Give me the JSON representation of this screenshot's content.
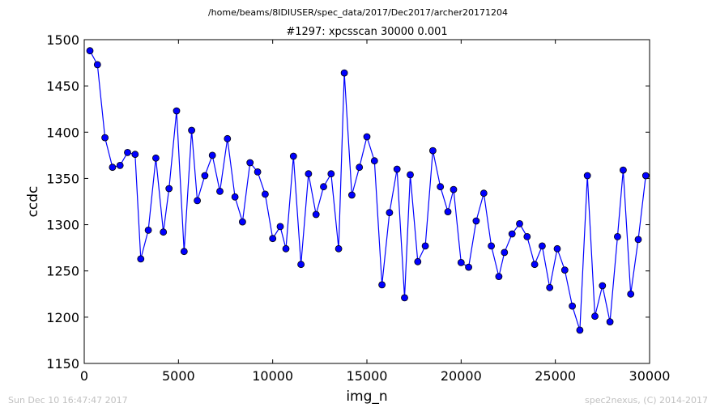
{
  "chart_data": {
    "type": "line",
    "suptitle": "/home/beams/8IDIUSER/spec_data/2017/Dec2017/archer20171204",
    "title": "#1297: xpcsscan 30000 0.001",
    "xlabel": "img_n",
    "ylabel": "ccdc",
    "xlim": [
      0,
      30000
    ],
    "ylim": [
      1150,
      1500
    ],
    "xticks": [
      0,
      5000,
      10000,
      15000,
      20000,
      25000,
      30000
    ],
    "yticks": [
      1150,
      1200,
      1250,
      1300,
      1350,
      1400,
      1450,
      1500
    ],
    "xtick_labels": [
      "0",
      "5000",
      "10000",
      "15000",
      "20000",
      "25000",
      "30000"
    ],
    "ytick_labels": [
      "1150",
      "1200",
      "1250",
      "1300",
      "1350",
      "1400",
      "1450",
      "1500"
    ],
    "grid": false,
    "legend": "none",
    "series": [
      {
        "color": "#0000ff",
        "marker": "circle",
        "x": [
          300,
          700,
          1100,
          1500,
          1900,
          2300,
          2700,
          3000,
          3400,
          3800,
          4200,
          4500,
          4900,
          5300,
          5700,
          6000,
          6400,
          6800,
          7200,
          7600,
          8000,
          8400,
          8800,
          9200,
          9600,
          10000,
          10400,
          10700,
          11100,
          11500,
          11900,
          12300,
          12700,
          13100,
          13500,
          13800,
          14200,
          14600,
          15000,
          15400,
          15800,
          16200,
          16600,
          17000,
          17300,
          17700,
          18100,
          18500,
          18900,
          19300,
          19600,
          20000,
          20400,
          20800,
          21200,
          21600,
          22000,
          22300,
          22700,
          23100,
          23500,
          23900,
          24300,
          24700,
          25100,
          25500,
          25900,
          26300,
          26700,
          27100,
          27500,
          27900,
          28300,
          28600,
          29000,
          29400,
          29800
        ],
        "y": [
          1488,
          1473,
          1394,
          1362,
          1364,
          1378,
          1376,
          1263,
          1294,
          1372,
          1292,
          1339,
          1423,
          1271,
          1402,
          1326,
          1353,
          1375,
          1336,
          1393,
          1330,
          1303,
          1367,
          1357,
          1333,
          1285,
          1298,
          1274,
          1374,
          1257,
          1355,
          1311,
          1341,
          1355,
          1274,
          1464,
          1332,
          1362,
          1395,
          1369,
          1235,
          1313,
          1360,
          1221,
          1354,
          1260,
          1277,
          1380,
          1341,
          1314,
          1338,
          1259,
          1254,
          1304,
          1334,
          1277,
          1244,
          1270,
          1290,
          1301,
          1287,
          1257,
          1277,
          1232,
          1274,
          1251,
          1212,
          1186,
          1353,
          1201,
          1234,
          1195,
          1287,
          1359,
          1225,
          1284,
          1353
        ]
      }
    ]
  },
  "footer": {
    "timestamp": "Sun Dec 10 16:47:47 2017",
    "credit": "spec2nexus, (C) 2014-2017"
  },
  "colors": {
    "line": "#0000ff",
    "marker_edge": "#000000",
    "footer": "#c0c0c0"
  }
}
